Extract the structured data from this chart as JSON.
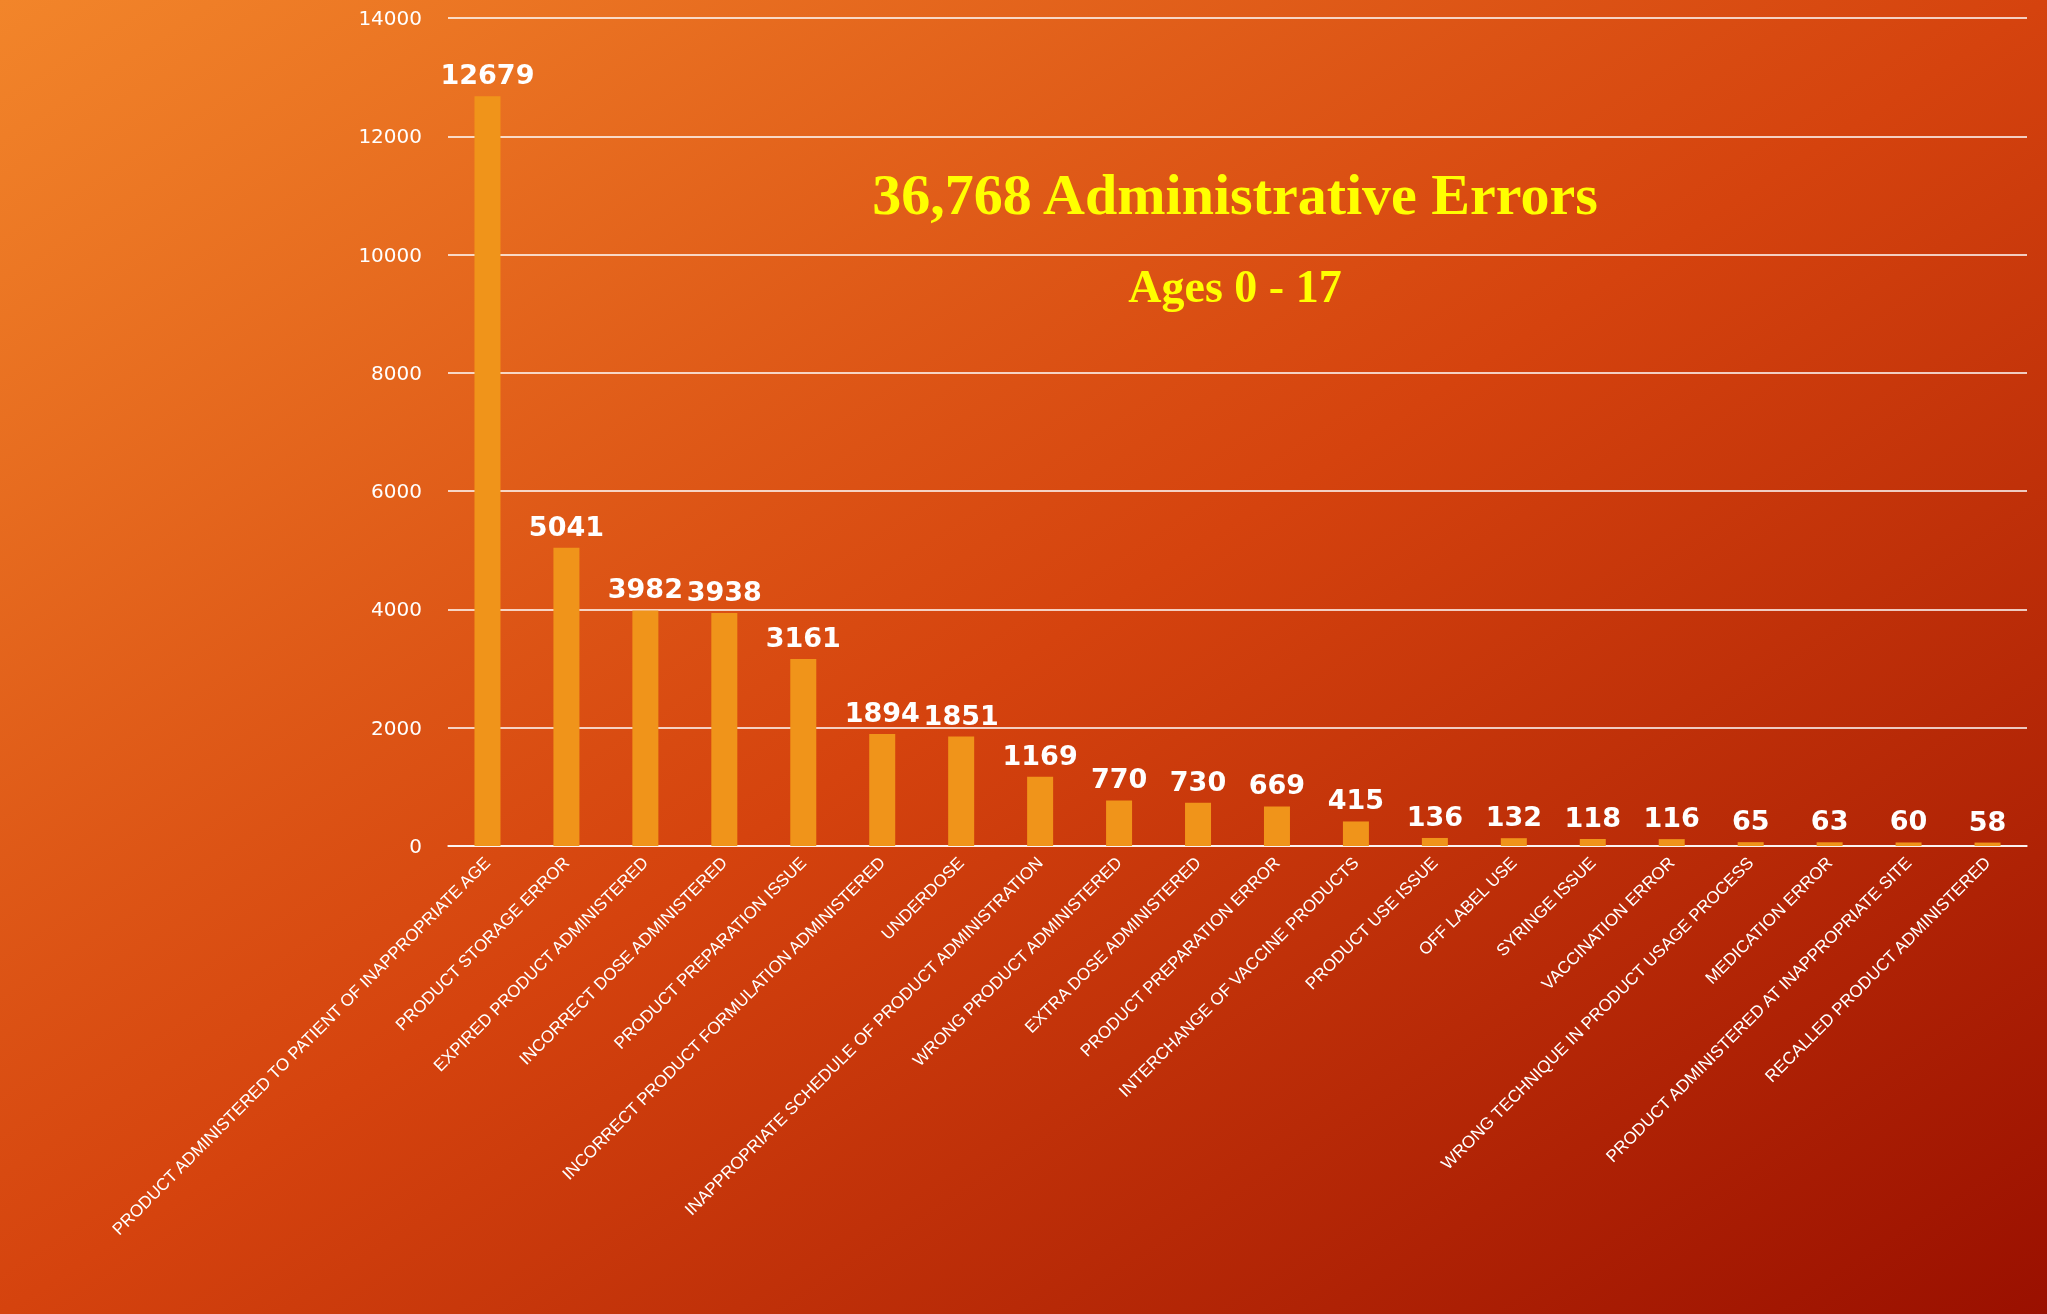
{
  "chart_data": {
    "type": "bar",
    "title": "36,768 Administrative Errors",
    "subtitle": "Ages 0 - 17",
    "categories": [
      "PRODUCT ADMINISTERED TO PATIENT OF INAPPROPRIATE AGE",
      "PRODUCT STORAGE ERROR",
      "EXPIRED PRODUCT ADMINISTERED",
      "INCORRECT DOSE ADMINISTERED",
      "PRODUCT PREPARATION ISSUE",
      "INCORRECT PRODUCT FORMULATION ADMINISTERED",
      "UNDERDOSE",
      "INAPPROPRIATE SCHEDULE OF PRODUCT ADMINISTRATION",
      "WRONG PRODUCT ADMINISTERED",
      "EXTRA DOSE ADMINISTERED",
      "PRODUCT PREPARATION ERROR",
      "INTERCHANGE OF VACCINE PRODUCTS",
      "PRODUCT USE ISSUE",
      "OFF LABEL USE",
      "SYRINGE ISSUE",
      "VACCINATION ERROR",
      "WRONG TECHNIQUE IN PRODUCT USAGE PROCESS",
      "MEDICATION ERROR",
      "PRODUCT ADMINISTERED AT INAPPROPRIATE SITE",
      "RECALLED PRODUCT ADMINISTERED"
    ],
    "values": [
      12679,
      5041,
      3982,
      3938,
      3161,
      1894,
      1851,
      1169,
      770,
      730,
      669,
      415,
      136,
      132,
      118,
      116,
      65,
      63,
      60,
      58
    ],
    "color": "#f0941a",
    "ylim": [
      0,
      14000
    ],
    "yticks": [
      0,
      2000,
      4000,
      6000,
      8000,
      10000,
      12000,
      14000
    ],
    "grid": "y",
    "data_labels": true
  }
}
